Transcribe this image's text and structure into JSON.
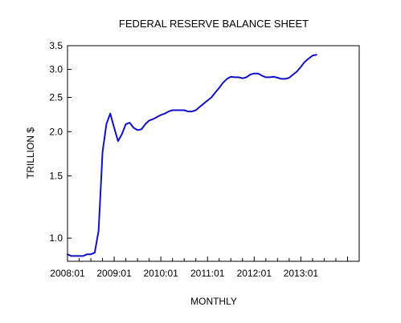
{
  "chart_data": {
    "type": "line",
    "title": "FEDERAL RESERVE BALANCE SHEET",
    "xlabel": "MONTHLY",
    "ylabel": "TRILLION $",
    "y_scale": "log",
    "ylim": [
      0.86,
      3.5
    ],
    "yticks": [
      1.0,
      1.5,
      2.0,
      2.5,
      3.0,
      3.5
    ],
    "ytick_labels": [
      "1.0",
      "1.5",
      "2.0",
      "2.5",
      "3.0",
      "3.5"
    ],
    "xlim": [
      "2008-01",
      "2014-04"
    ],
    "xticks": [
      "2008-01",
      "2009-01",
      "2010-01",
      "2011-01",
      "2012-01",
      "2013-01"
    ],
    "xtick_labels": [
      "2008:01",
      "2009:01",
      "2010:01",
      "2011:01",
      "2012:01",
      "2013:01"
    ],
    "grid": false,
    "legend": "none",
    "line_color": "#1010c8",
    "series": [
      {
        "x": [
          "2008-01",
          "2008-02",
          "2008-03",
          "2008-04",
          "2008-05",
          "2008-06",
          "2008-07",
          "2008-08",
          "2008-09",
          "2008-10",
          "2008-11",
          "2008-12",
          "2009-01",
          "2009-02",
          "2009-03",
          "2009-04",
          "2009-05",
          "2009-06",
          "2009-07",
          "2009-08",
          "2009-09",
          "2009-10",
          "2009-11",
          "2009-12",
          "2010-01",
          "2010-02",
          "2010-03",
          "2010-04",
          "2010-05",
          "2010-06",
          "2010-07",
          "2010-08",
          "2010-09",
          "2010-10",
          "2010-11",
          "2010-12",
          "2011-01",
          "2011-02",
          "2011-03",
          "2011-04",
          "2011-05",
          "2011-06",
          "2011-07",
          "2011-08",
          "2011-09",
          "2011-10",
          "2011-11",
          "2011-12",
          "2012-01",
          "2012-02",
          "2012-03",
          "2012-04",
          "2012-05",
          "2012-06",
          "2012-07",
          "2012-08",
          "2012-09",
          "2012-10",
          "2012-11",
          "2012-12",
          "2013-01",
          "2013-02",
          "2013-03",
          "2013-04",
          "2013-05"
        ],
        "values": [
          0.9,
          0.89,
          0.89,
          0.89,
          0.89,
          0.9,
          0.9,
          0.91,
          1.05,
          1.75,
          2.1,
          2.25,
          2.05,
          1.88,
          1.97,
          2.1,
          2.12,
          2.05,
          2.02,
          2.03,
          2.1,
          2.15,
          2.17,
          2.2,
          2.23,
          2.25,
          2.28,
          2.3,
          2.3,
          2.3,
          2.3,
          2.28,
          2.28,
          2.3,
          2.35,
          2.4,
          2.45,
          2.5,
          2.58,
          2.66,
          2.75,
          2.82,
          2.86,
          2.85,
          2.85,
          2.83,
          2.85,
          2.9,
          2.92,
          2.92,
          2.88,
          2.85,
          2.85,
          2.86,
          2.84,
          2.82,
          2.82,
          2.84,
          2.9,
          2.96,
          3.05,
          3.15,
          3.22,
          3.28,
          3.3
        ]
      }
    ]
  }
}
